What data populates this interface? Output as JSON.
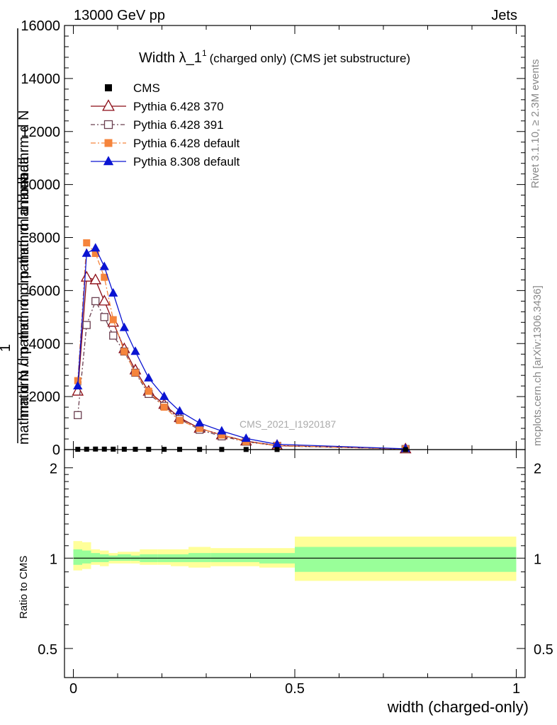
{
  "header": {
    "left": "13000 GeV pp",
    "right": "Jets"
  },
  "side_labels": {
    "rivet": "Rivet 3.1.10, ≥ 2.3M events",
    "mcplots": "mcplots.cern.ch [arXiv:1306.3436]"
  },
  "watermark": "CMS_2021_I1920187",
  "ratio_ylabel": "Ratio to CMS",
  "chart_data": [
    {
      "type": "line",
      "title": "Width λ_1",
      "title_sup": "1",
      "subtitle": "(charged only) (CMS jet substructure)",
      "ylabel_top": "1",
      "ylabel_frac_num": "mathrm d^{2}N",
      "ylabel_frac_den": "mathrm d p_{T} mathrm d lambda",
      "ylabel_overlay": "mathrm d^{2}N / mathrm d p_{T} mathrm d lambda",
      "ylabel_lines": [
        "mathrm d N",
        "mathrm d p mathrm d p mathrm d lambda",
        "1",
        "mathrm d N / mathrm d p mathrm d lambda"
      ],
      "xlabel": "width (charged-only)",
      "xlim": [
        -0.02,
        1.02
      ],
      "ylim": [
        0,
        16000
      ],
      "yticks": [
        0,
        2000,
        4000,
        6000,
        8000,
        10000,
        12000,
        14000,
        16000
      ],
      "xticks": [
        0,
        0.5,
        1
      ],
      "legend_position": "top-left",
      "series": [
        {
          "name": "CMS",
          "color": "#000000",
          "marker": "square-filled",
          "dash": "",
          "x": [
            0.01,
            0.03,
            0.05,
            0.07,
            0.09,
            0.115,
            0.14,
            0.17,
            0.205,
            0.24,
            0.285,
            0.335,
            0.39,
            0.46,
            0.75
          ],
          "y": [
            10,
            15,
            20,
            18,
            16,
            14,
            12,
            10,
            9,
            8,
            7,
            6,
            5,
            4,
            1
          ]
        },
        {
          "name": "Pythia 6.428 370",
          "color": "#8b0a14",
          "marker": "triangle-open",
          "dash": "",
          "x": [
            0.01,
            0.03,
            0.05,
            0.07,
            0.09,
            0.115,
            0.14,
            0.17,
            0.205,
            0.24,
            0.285,
            0.335,
            0.39,
            0.46,
            0.75
          ],
          "y": [
            2200,
            6500,
            6400,
            5600,
            4800,
            3800,
            3000,
            2200,
            1700,
            1200,
            800,
            550,
            320,
            150,
            20
          ]
        },
        {
          "name": "Pythia 6.428 391",
          "color": "#6b4050",
          "marker": "square-open",
          "dash": "6,3,2,3",
          "x": [
            0.01,
            0.03,
            0.05,
            0.07,
            0.09,
            0.115,
            0.14,
            0.17,
            0.205,
            0.24,
            0.285,
            0.335,
            0.39,
            0.46,
            0.75
          ],
          "y": [
            1300,
            4700,
            5600,
            5000,
            4300,
            3700,
            2900,
            2100,
            1650,
            1150,
            750,
            500,
            300,
            140,
            20
          ]
        },
        {
          "name": "Pythia 6.428 default",
          "color": "#f5843c",
          "marker": "square-filled",
          "dash": "7,3,2,3",
          "x": [
            0.01,
            0.03,
            0.05,
            0.07,
            0.09,
            0.115,
            0.14,
            0.17,
            0.205,
            0.24,
            0.285,
            0.335,
            0.39,
            0.46,
            0.75
          ],
          "y": [
            2600,
            7800,
            7400,
            6500,
            4900,
            3700,
            2900,
            2200,
            1600,
            1100,
            800,
            550,
            300,
            150,
            20
          ]
        },
        {
          "name": "Pythia 8.308 default",
          "color": "#0a14d2",
          "marker": "triangle-filled",
          "dash": "",
          "x": [
            0.01,
            0.03,
            0.05,
            0.07,
            0.09,
            0.115,
            0.14,
            0.17,
            0.205,
            0.24,
            0.285,
            0.335,
            0.39,
            0.46,
            0.75
          ],
          "y": [
            2400,
            7400,
            7600,
            6900,
            5900,
            4600,
            3700,
            2700,
            2000,
            1450,
            1000,
            700,
            420,
            200,
            30
          ]
        }
      ]
    },
    {
      "type": "area",
      "ylabel": "Ratio to CMS",
      "xlabel": "width (charged-only)",
      "ylim": [
        0.4,
        2.3
      ],
      "yticks": [
        0.5,
        1,
        2
      ],
      "xticks": [
        0,
        0.5,
        1
      ],
      "scale": "log",
      "reference_line": 1,
      "colors": {
        "inner": "#99ff99",
        "outer": "#ffff99",
        "line": "#000000"
      },
      "bins": [
        {
          "x0": 0.0,
          "x1": 0.02,
          "inner": [
            0.95,
            1.07
          ],
          "outer": [
            0.91,
            1.14
          ]
        },
        {
          "x0": 0.02,
          "x1": 0.04,
          "inner": [
            0.96,
            1.06
          ],
          "outer": [
            0.92,
            1.13
          ]
        },
        {
          "x0": 0.04,
          "x1": 0.06,
          "inner": [
            0.97,
            1.04
          ],
          "outer": [
            0.95,
            1.07
          ]
        },
        {
          "x0": 0.06,
          "x1": 0.08,
          "inner": [
            0.97,
            1.03
          ],
          "outer": [
            0.94,
            1.06
          ]
        },
        {
          "x0": 0.08,
          "x1": 0.1,
          "inner": [
            0.98,
            1.02
          ],
          "outer": [
            0.96,
            1.04
          ]
        },
        {
          "x0": 0.1,
          "x1": 0.13,
          "inner": [
            0.98,
            1.03
          ],
          "outer": [
            0.96,
            1.05
          ]
        },
        {
          "x0": 0.13,
          "x1": 0.15,
          "inner": [
            0.98,
            1.02
          ],
          "outer": [
            0.96,
            1.05
          ]
        },
        {
          "x0": 0.15,
          "x1": 0.19,
          "inner": [
            0.97,
            1.03
          ],
          "outer": [
            0.95,
            1.07
          ]
        },
        {
          "x0": 0.19,
          "x1": 0.22,
          "inner": [
            0.97,
            1.03
          ],
          "outer": [
            0.95,
            1.07
          ]
        },
        {
          "x0": 0.22,
          "x1": 0.26,
          "inner": [
            0.97,
            1.03
          ],
          "outer": [
            0.94,
            1.07
          ]
        },
        {
          "x0": 0.26,
          "x1": 0.31,
          "inner": [
            0.97,
            1.04
          ],
          "outer": [
            0.93,
            1.09
          ]
        },
        {
          "x0": 0.31,
          "x1": 0.36,
          "inner": [
            0.97,
            1.04
          ],
          "outer": [
            0.94,
            1.08
          ]
        },
        {
          "x0": 0.36,
          "x1": 0.42,
          "inner": [
            0.97,
            1.04
          ],
          "outer": [
            0.94,
            1.08
          ]
        },
        {
          "x0": 0.42,
          "x1": 0.5,
          "inner": [
            0.96,
            1.04
          ],
          "outer": [
            0.93,
            1.08
          ]
        },
        {
          "x0": 0.5,
          "x1": 1.0,
          "inner": [
            0.9,
            1.09
          ],
          "outer": [
            0.84,
            1.18
          ]
        }
      ]
    }
  ]
}
